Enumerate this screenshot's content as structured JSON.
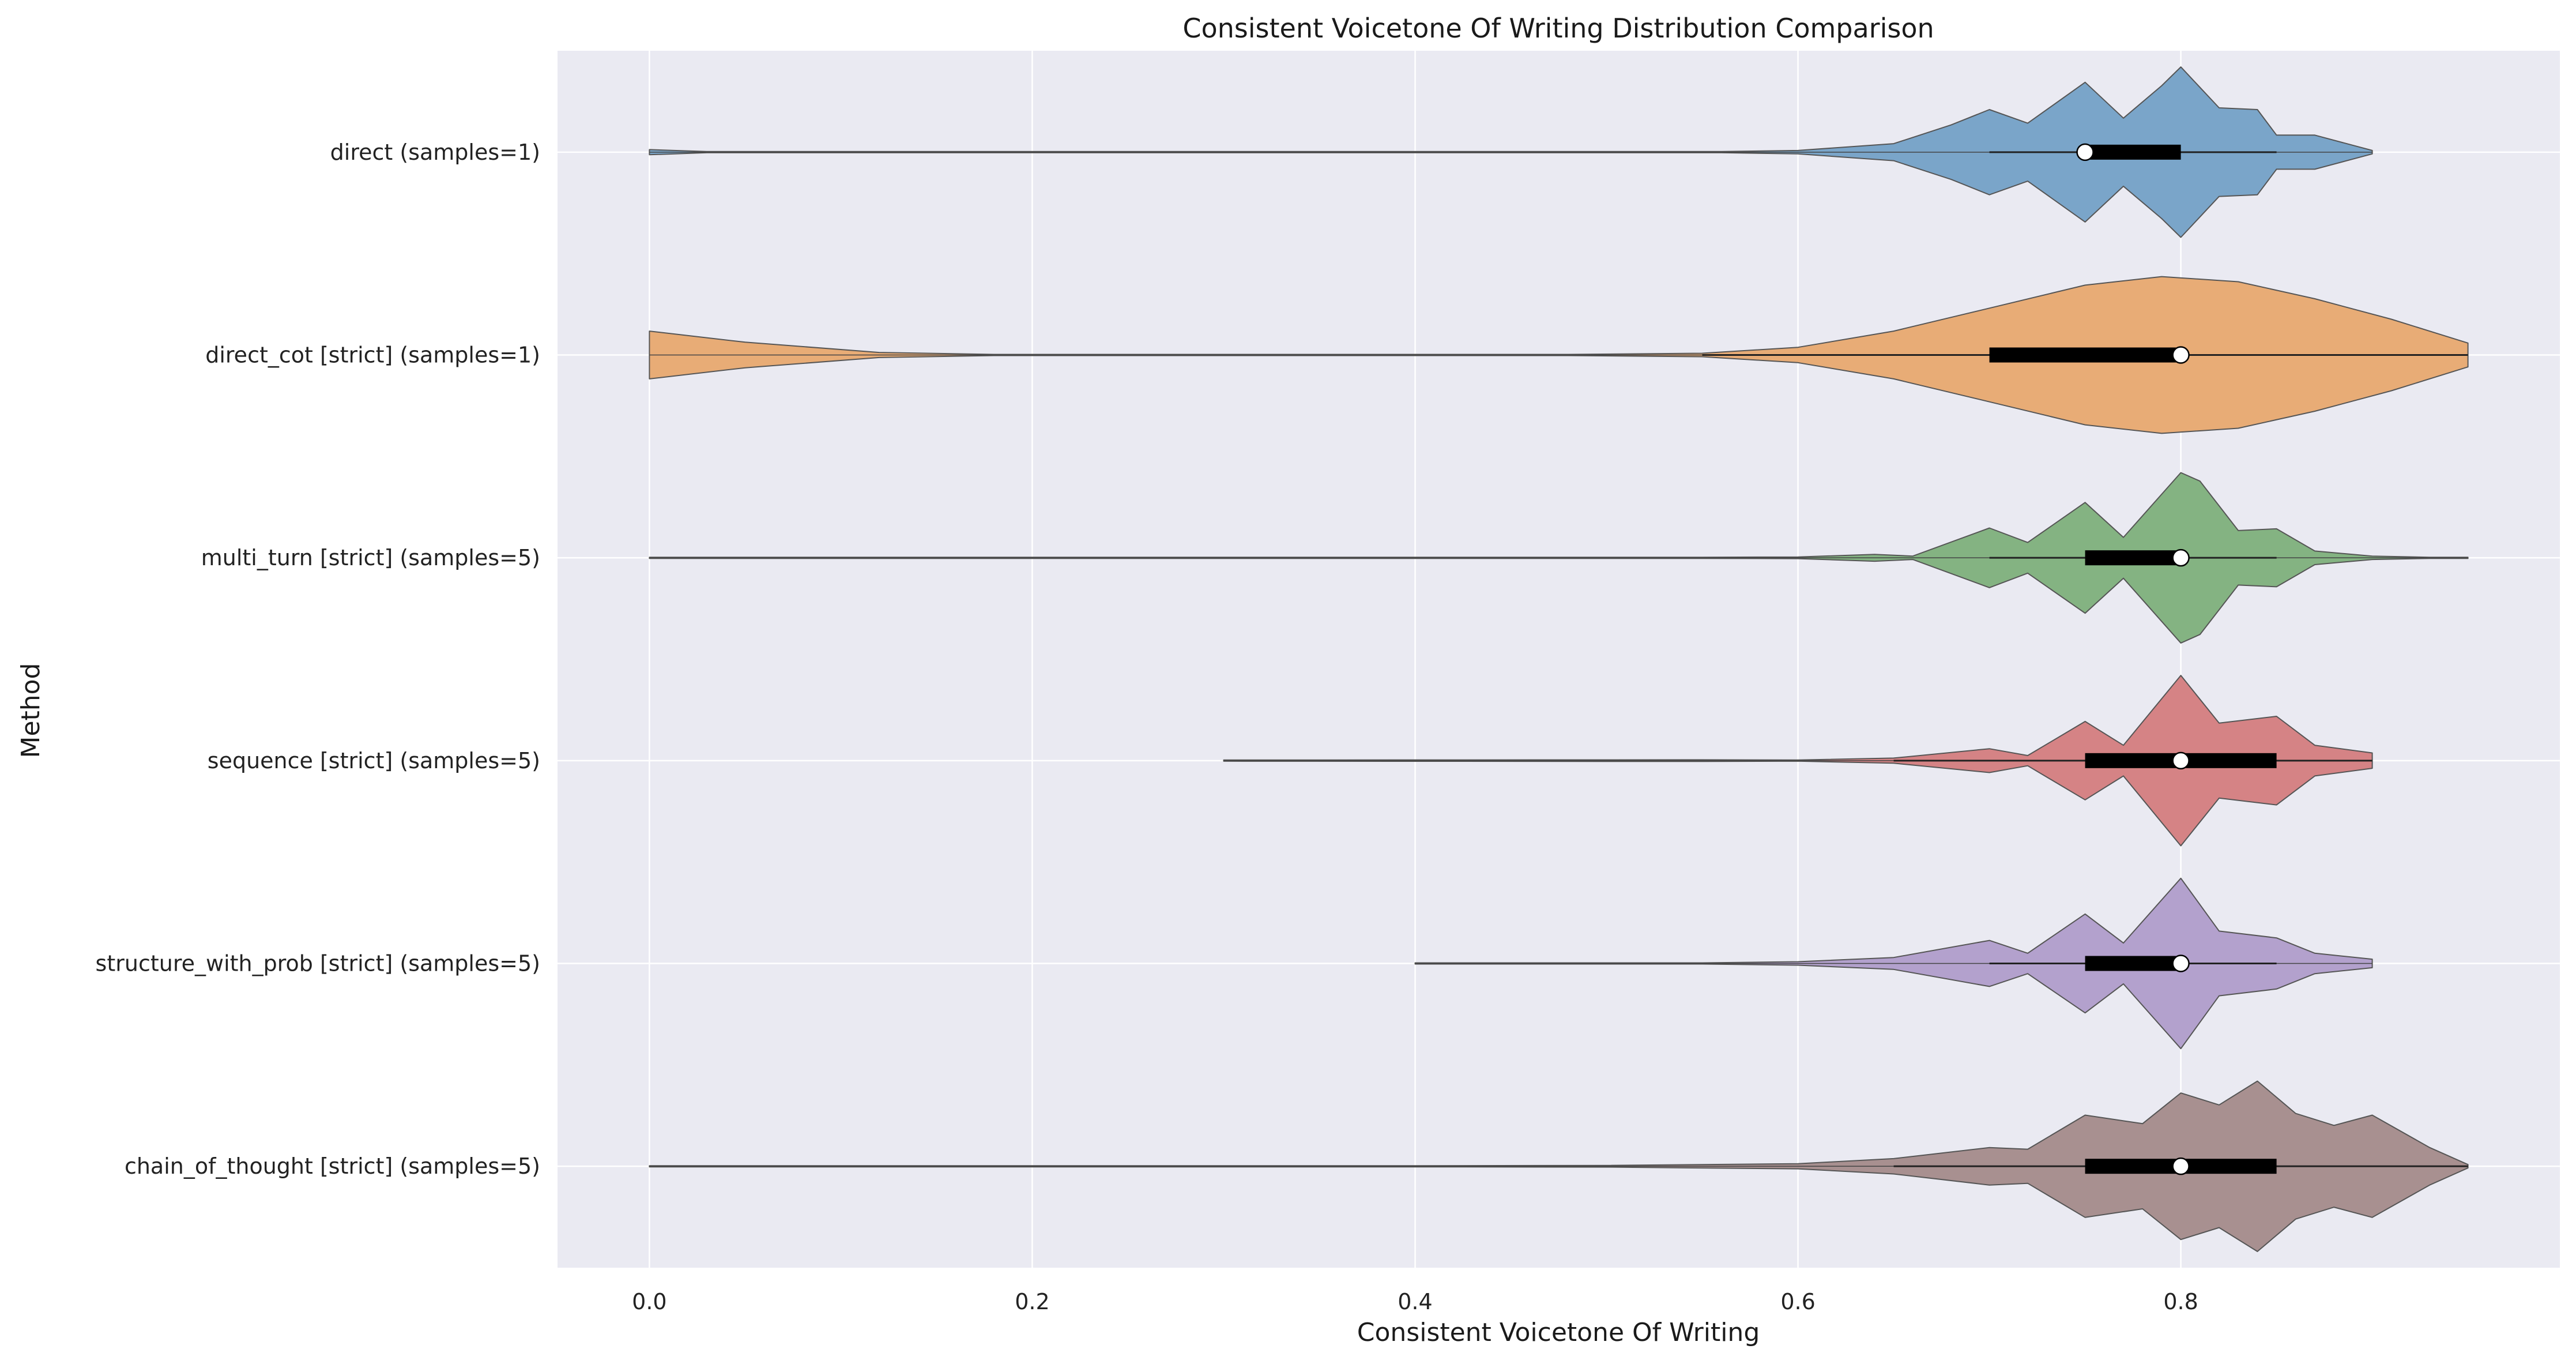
{
  "chart_data": {
    "type": "violin",
    "title": "Consistent Voicetone Of Writing Distribution Comparison",
    "xlabel": "Consistent Voicetone Of Writing",
    "ylabel": "Method",
    "xlim": [
      -0.048,
      0.998
    ],
    "x_ticks": [
      {
        "value": 0.0,
        "label": "0.0"
      },
      {
        "value": 0.2,
        "label": "0.2"
      },
      {
        "value": 0.4,
        "label": "0.4"
      },
      {
        "value": 0.6,
        "label": "0.6"
      },
      {
        "value": 0.8,
        "label": "0.8"
      }
    ],
    "grid": true,
    "background": "#eaeaf2",
    "series": [
      {
        "name": "direct (samples=1)",
        "color": "#7aa5c9",
        "min": 0.0,
        "whisker_low": 0.7,
        "q1": 0.75,
        "median": 0.75,
        "q3": 0.8,
        "whisker_high": 0.85,
        "max": 0.9,
        "density": [
          [
            0.0,
            0.03
          ],
          [
            0.03,
            0.0
          ],
          [
            0.56,
            0.0
          ],
          [
            0.6,
            0.02
          ],
          [
            0.65,
            0.1
          ],
          [
            0.68,
            0.32
          ],
          [
            0.7,
            0.5
          ],
          [
            0.72,
            0.34
          ],
          [
            0.75,
            0.82
          ],
          [
            0.77,
            0.4
          ],
          [
            0.79,
            0.78
          ],
          [
            0.8,
            1.0
          ],
          [
            0.82,
            0.52
          ],
          [
            0.84,
            0.5
          ],
          [
            0.85,
            0.2
          ],
          [
            0.87,
            0.2
          ],
          [
            0.9,
            0.02
          ]
        ]
      },
      {
        "name": "direct_cot [strict] (samples=1)",
        "color": "#e8ac76",
        "min": 0.0,
        "whisker_low": 0.55,
        "q1": 0.7,
        "median": 0.8,
        "q3": 0.8,
        "whisker_high": 0.95,
        "max": 0.95,
        "density": [
          [
            0.0,
            0.28
          ],
          [
            0.05,
            0.15
          ],
          [
            0.12,
            0.03
          ],
          [
            0.18,
            0.0
          ],
          [
            0.48,
            0.0
          ],
          [
            0.55,
            0.02
          ],
          [
            0.6,
            0.09
          ],
          [
            0.65,
            0.28
          ],
          [
            0.7,
            0.55
          ],
          [
            0.75,
            0.82
          ],
          [
            0.79,
            0.92
          ],
          [
            0.83,
            0.86
          ],
          [
            0.87,
            0.66
          ],
          [
            0.91,
            0.42
          ],
          [
            0.95,
            0.14
          ]
        ]
      },
      {
        "name": "multi_turn [strict] (samples=5)",
        "color": "#84b382",
        "min": 0.0,
        "whisker_low": 0.7,
        "q1": 0.75,
        "median": 0.8,
        "q3": 0.8,
        "whisker_high": 0.85,
        "max": 0.95,
        "density": [
          [
            0.0,
            0.0
          ],
          [
            0.55,
            0.0
          ],
          [
            0.6,
            0.01
          ],
          [
            0.64,
            0.04
          ],
          [
            0.66,
            0.02
          ],
          [
            0.7,
            0.35
          ],
          [
            0.72,
            0.18
          ],
          [
            0.75,
            0.65
          ],
          [
            0.77,
            0.24
          ],
          [
            0.8,
            1.0
          ],
          [
            0.81,
            0.9
          ],
          [
            0.83,
            0.32
          ],
          [
            0.85,
            0.34
          ],
          [
            0.87,
            0.08
          ],
          [
            0.9,
            0.02
          ],
          [
            0.93,
            0.0
          ],
          [
            0.95,
            0.0
          ]
        ]
      },
      {
        "name": "sequence [strict] (samples=5)",
        "color": "#d58385",
        "min": 0.3,
        "whisker_low": 0.65,
        "q1": 0.75,
        "median": 0.8,
        "q3": 0.85,
        "whisker_high": 0.9,
        "max": 0.9,
        "density": [
          [
            0.3,
            0.0
          ],
          [
            0.55,
            0.01
          ],
          [
            0.6,
            0.0
          ],
          [
            0.65,
            0.03
          ],
          [
            0.7,
            0.14
          ],
          [
            0.72,
            0.06
          ],
          [
            0.75,
            0.46
          ],
          [
            0.77,
            0.18
          ],
          [
            0.8,
            1.0
          ],
          [
            0.82,
            0.44
          ],
          [
            0.85,
            0.52
          ],
          [
            0.87,
            0.18
          ],
          [
            0.9,
            0.09
          ]
        ]
      },
      {
        "name": "structure_with_prob [strict] (samples=5)",
        "color": "#b3a1cd",
        "min": 0.4,
        "whisker_low": 0.7,
        "q1": 0.75,
        "median": 0.8,
        "q3": 0.8,
        "whisker_high": 0.85,
        "max": 0.9,
        "density": [
          [
            0.4,
            0.0
          ],
          [
            0.55,
            0.0
          ],
          [
            0.6,
            0.02
          ],
          [
            0.65,
            0.07
          ],
          [
            0.7,
            0.27
          ],
          [
            0.72,
            0.12
          ],
          [
            0.75,
            0.58
          ],
          [
            0.77,
            0.24
          ],
          [
            0.8,
            1.0
          ],
          [
            0.82,
            0.38
          ],
          [
            0.85,
            0.3
          ],
          [
            0.87,
            0.12
          ],
          [
            0.9,
            0.05
          ]
        ]
      },
      {
        "name": "chain_of_thought [strict] (samples=5)",
        "color": "#a89090",
        "min": 0.0,
        "whisker_low": 0.65,
        "q1": 0.75,
        "median": 0.8,
        "q3": 0.85,
        "whisker_high": 0.95,
        "max": 0.95,
        "density": [
          [
            0.0,
            0.0
          ],
          [
            0.4,
            0.0
          ],
          [
            0.5,
            0.01
          ],
          [
            0.6,
            0.03
          ],
          [
            0.65,
            0.09
          ],
          [
            0.7,
            0.22
          ],
          [
            0.72,
            0.2
          ],
          [
            0.75,
            0.6
          ],
          [
            0.78,
            0.5
          ],
          [
            0.8,
            0.86
          ],
          [
            0.82,
            0.72
          ],
          [
            0.84,
            1.0
          ],
          [
            0.86,
            0.62
          ],
          [
            0.88,
            0.48
          ],
          [
            0.9,
            0.6
          ],
          [
            0.93,
            0.22
          ],
          [
            0.95,
            0.02
          ]
        ]
      }
    ]
  }
}
